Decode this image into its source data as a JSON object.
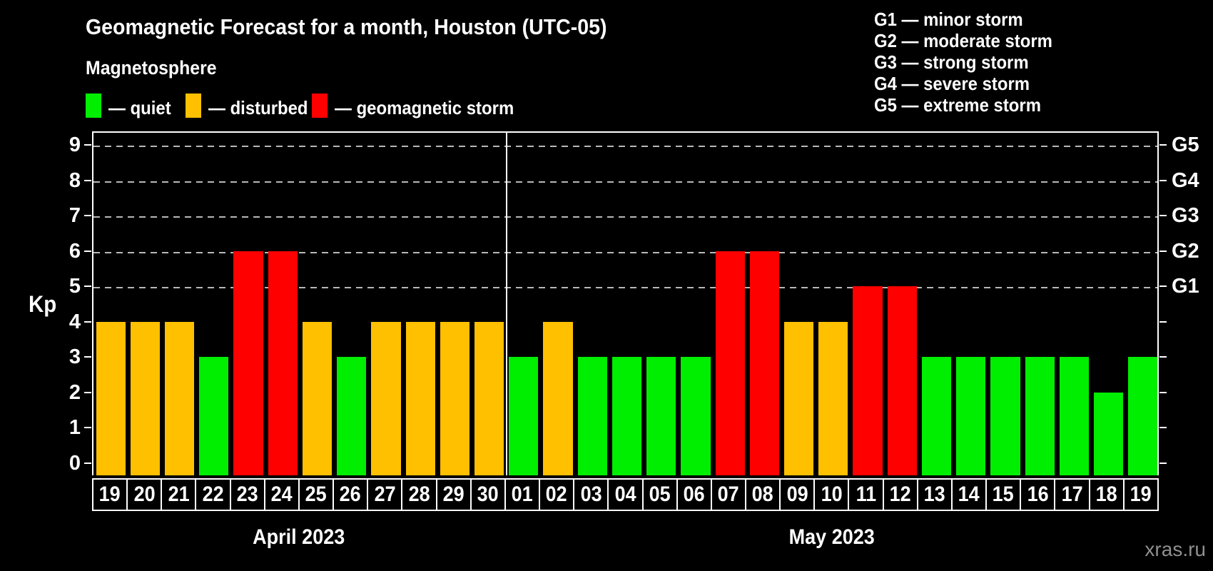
{
  "title": "Geomagnetic Forecast for a month, Houston (UTC-05)",
  "subtitle": "Magnetosphere",
  "legend": {
    "quiet_label": "— quiet",
    "disturbed_label": "— disturbed",
    "storm_label": "— geomagnetic storm"
  },
  "g_legend": [
    "G1 — minor storm",
    "G2 — moderate storm",
    "G3 — strong storm",
    "G4 — severe storm",
    "G5 — extreme storm"
  ],
  "axis": {
    "y_label": "Kp",
    "y_ticks": [
      0,
      1,
      2,
      3,
      4,
      5,
      6,
      7,
      8,
      9
    ],
    "right_labels": [
      {
        "level": 5,
        "label": "G1"
      },
      {
        "level": 6,
        "label": "G2"
      },
      {
        "level": 7,
        "label": "G3"
      },
      {
        "level": 8,
        "label": "G4"
      },
      {
        "level": 9,
        "label": "G5"
      }
    ]
  },
  "months": [
    {
      "label": "April 2023",
      "days": 12
    },
    {
      "label": "May 2023",
      "days": 19
    }
  ],
  "watermark": "xras.ru",
  "colors": {
    "background": "#000000",
    "quiet": "#00EE00",
    "disturbed": "#FFC000",
    "storm": "#FF0000",
    "grid": "#b8b8b8",
    "axis": "#ffffff",
    "watermark": "#8f8f8f"
  },
  "chart_data": {
    "type": "bar",
    "title": "Geomagnetic Forecast for a month, Houston (UTC-05)",
    "ylabel": "Kp",
    "ylim": [
      -0.36,
      9.38
    ],
    "gridlines": [
      5,
      6,
      7,
      8,
      9
    ],
    "legend_position": "top",
    "categories": [
      "19",
      "20",
      "21",
      "22",
      "23",
      "24",
      "25",
      "26",
      "27",
      "28",
      "29",
      "30",
      "01",
      "02",
      "03",
      "04",
      "05",
      "06",
      "07",
      "08",
      "09",
      "10",
      "11",
      "12",
      "13",
      "14",
      "15",
      "16",
      "17",
      "18",
      "19"
    ],
    "values": [
      4,
      4,
      4,
      3,
      6,
      6,
      4,
      3,
      4,
      4,
      4,
      4,
      3,
      4,
      3,
      3,
      3,
      3,
      6,
      6,
      4,
      4,
      5,
      5,
      3,
      3,
      3,
      3,
      3,
      2,
      3
    ],
    "levels": [
      "disturbed",
      "disturbed",
      "disturbed",
      "quiet",
      "storm",
      "storm",
      "disturbed",
      "quiet",
      "disturbed",
      "disturbed",
      "disturbed",
      "disturbed",
      "quiet",
      "disturbed",
      "quiet",
      "quiet",
      "quiet",
      "quiet",
      "storm",
      "storm",
      "disturbed",
      "disturbed",
      "storm",
      "storm",
      "quiet",
      "quiet",
      "quiet",
      "quiet",
      "quiet",
      "quiet",
      "quiet"
    ]
  }
}
